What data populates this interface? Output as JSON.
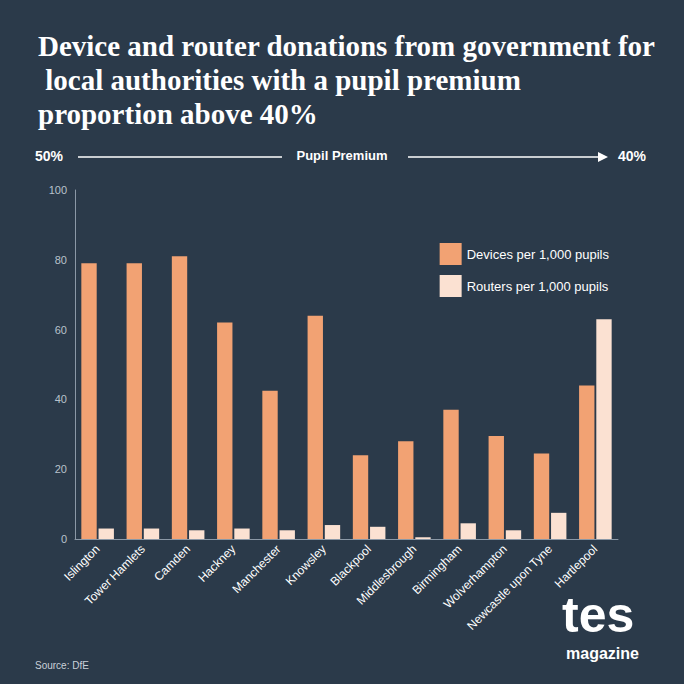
{
  "chart_data": {
    "type": "bar",
    "title": "Device and router donations from government for local authorities with a pupil premium proportion above 40%",
    "scale_annotation": {
      "left": "50%",
      "center": "Pupil Premium",
      "right": "40%"
    },
    "categories": [
      "Islington",
      "Tower Hamlets",
      "Camden",
      "Hackney",
      "Manchester",
      "Knowsley",
      "Blackpool",
      "Middlesbrough",
      "Birmingham",
      "Wolverhampton",
      "Newcastle upon Tyne",
      "Hartlepool"
    ],
    "series": [
      {
        "name": "Devices per 1,000 pupils",
        "color": "#f2a273",
        "values": [
          79,
          79,
          81,
          62,
          42.5,
          64,
          24,
          28,
          37,
          29.5,
          24.5,
          44
        ]
      },
      {
        "name": "Routers per 1,000 pupils",
        "color": "#fbe1d2",
        "values": [
          3,
          3,
          2.5,
          3,
          2.5,
          4,
          3.5,
          0.5,
          4.5,
          2.5,
          7.5,
          63
        ]
      }
    ],
    "ylim": [
      0,
      100
    ],
    "yticks": [
      0,
      20,
      40,
      60,
      80,
      100
    ],
    "grid": false,
    "legend": "top-right",
    "source": "Source: DfE",
    "logo": {
      "text": "tes",
      "subtext": "magazine"
    }
  }
}
